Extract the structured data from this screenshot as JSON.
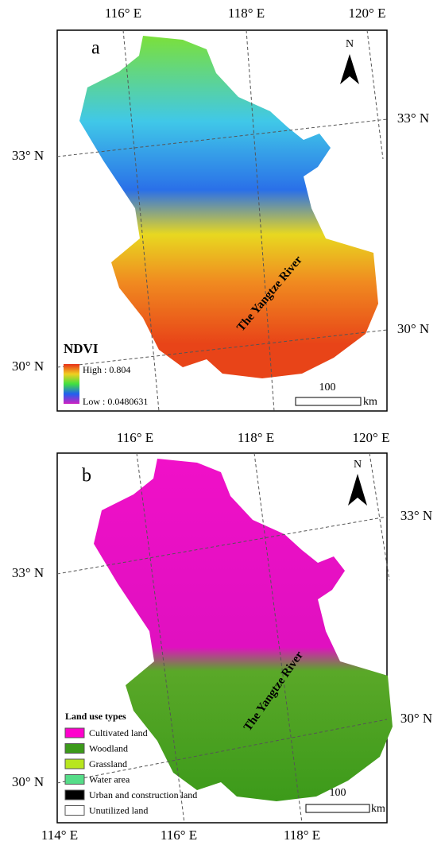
{
  "panels": [
    {
      "label": "a",
      "north": "N",
      "top_labels": [
        "116° E",
        "118° E",
        "120° E"
      ],
      "left_labels": [
        "33° N",
        "30° N"
      ],
      "right_labels": [
        "33° N",
        "30° N"
      ],
      "legend": {
        "title": "NDVI",
        "high": "High : 0.804",
        "low": "Low : 0.0480631"
      },
      "river": "The Yangtze River",
      "scale": {
        "distance": "100",
        "unit": "km"
      }
    },
    {
      "label": "b",
      "north": "N",
      "top_labels": [
        "116° E",
        "118° E",
        "120° E"
      ],
      "left_labels": [
        "33° N",
        "30° N"
      ],
      "right_labels": [
        "33° N",
        "30° N"
      ],
      "bottom_labels": [
        "114° E",
        "116° E",
        "118° E"
      ],
      "legend": {
        "title": "Land use types",
        "items": [
          {
            "name": "Cultivated land",
            "color": "#ff00cc"
          },
          {
            "name": "Woodland",
            "color": "#3c9a1a"
          },
          {
            "name": "Grassland",
            "color": "#b8e61e"
          },
          {
            "name": "Water area",
            "color": "#55dd88"
          },
          {
            "name": "Urban and construction land",
            "color": "#000000"
          },
          {
            "name": "Unutilized land",
            "color": "#ffffff"
          }
        ]
      },
      "river": "The Yangtze River",
      "scale": {
        "distance": "100",
        "unit": "km"
      }
    }
  ]
}
